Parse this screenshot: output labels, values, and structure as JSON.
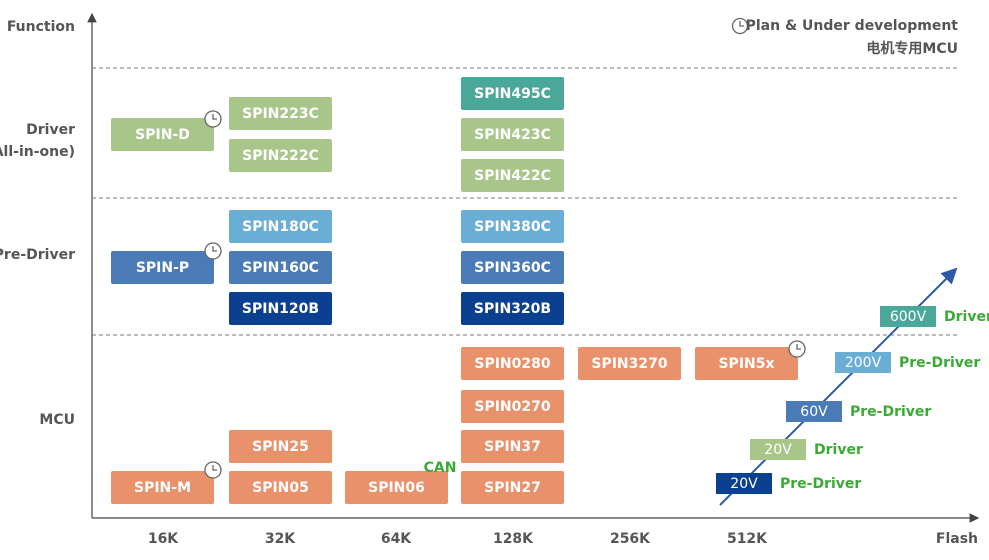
{
  "axes": {
    "y_label": "Function",
    "x_label": "Flash"
  },
  "legend": {
    "plan": "Plan & Under development",
    "motor_mcu": "电机专用MCU"
  },
  "rows": [
    {
      "lines": [
        "Driver",
        "(All-in-one)"
      ]
    },
    {
      "lines": [
        "Pre-Driver"
      ]
    },
    {
      "lines": [
        "MCU"
      ]
    }
  ],
  "columns": [
    "16K",
    "32K",
    "64K",
    "128K",
    "256K",
    "512K"
  ],
  "products": [
    "SPIN-D",
    "SPIN223C",
    "SPIN222C",
    "SPIN495C",
    "SPIN423C",
    "SPIN422C",
    "SPIN180C",
    "SPIN160C",
    "SPIN120B",
    "SPIN-P",
    "SPIN380C",
    "SPIN360C",
    "SPIN320B",
    "SPIN0280",
    "SPIN3270",
    "SPIN5x",
    "SPIN0270",
    "SPIN25",
    "SPIN37",
    "SPIN-M",
    "SPIN05",
    "SPIN06",
    "SPIN27"
  ],
  "can_label": "CAN",
  "voltage_tags": [
    {
      "voltage": "20V",
      "role": "Pre-Driver"
    },
    {
      "voltage": "20V",
      "role": "Driver"
    },
    {
      "voltage": "60V",
      "role": "Pre-Driver"
    },
    {
      "voltage": "200V",
      "role": "Pre-Driver"
    },
    {
      "voltage": "600V",
      "role": "Driver"
    }
  ]
}
